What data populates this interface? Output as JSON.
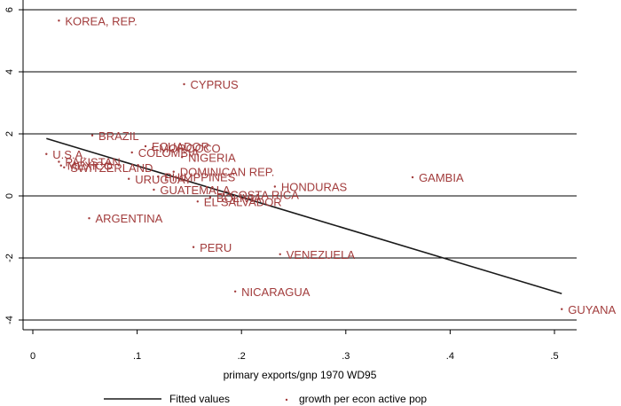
{
  "chart_data": {
    "type": "scatter",
    "xlabel": "primary exports/gnp 1970 WD95",
    "ylabel": "",
    "xlim": [
      0,
      0.52
    ],
    "ylim": [
      -4.2,
      6.2
    ],
    "x_ticks": [
      {
        "value": 0,
        "label": "0"
      },
      {
        "value": 0.1,
        "label": ".1"
      },
      {
        "value": 0.2,
        "label": ".2"
      },
      {
        "value": 0.3,
        "label": ".3"
      },
      {
        "value": 0.4,
        "label": ".4"
      },
      {
        "value": 0.5,
        "label": ".5"
      }
    ],
    "y_ticks": [
      {
        "value": -4,
        "label": "-4"
      },
      {
        "value": -2,
        "label": "-2"
      },
      {
        "value": 0,
        "label": "0"
      },
      {
        "value": 2,
        "label": "2"
      },
      {
        "value": 4,
        "label": "4"
      },
      {
        "value": 6,
        "label": "6"
      }
    ],
    "grid": "horizontal",
    "legend_placement": "bottom",
    "colors": {
      "points": "#a23c3c",
      "fit": "#1a1a1a"
    },
    "series": [
      {
        "name": "growth per econ active pop",
        "kind": "scatter",
        "points": [
          {
            "label": "KOREA, REP.",
            "x": 0.025,
            "y": 5.65
          },
          {
            "label": "CYPRUS",
            "x": 0.145,
            "y": 3.6
          },
          {
            "label": "BRAZIL",
            "x": 0.057,
            "y": 1.95
          },
          {
            "label": "ECUADOR",
            "x": 0.108,
            "y": 1.6
          },
          {
            "label": "MOROCCO",
            "x": 0.115,
            "y": 1.55
          },
          {
            "label": "COLOMBIA",
            "x": 0.095,
            "y": 1.4
          },
          {
            "label": "NIGERIA",
            "x": 0.143,
            "y": 1.25
          },
          {
            "label": "U.S.A.",
            "x": 0.013,
            "y": 1.35
          },
          {
            "label": "PAKISTAN",
            "x": 0.025,
            "y": 1.1
          },
          {
            "label": "MEXICO",
            "x": 0.027,
            "y": 0.98
          },
          {
            "label": "SWITZERLAND",
            "x": 0.03,
            "y": 0.92
          },
          {
            "label": "DOMINICAN REP.",
            "x": 0.135,
            "y": 0.78
          },
          {
            "label": "PHILIPPINES",
            "x": 0.12,
            "y": 0.62
          },
          {
            "label": "URUGUAY",
            "x": 0.092,
            "y": 0.55
          },
          {
            "label": "GAMBIA",
            "x": 0.364,
            "y": 0.6
          },
          {
            "label": "HONDURAS",
            "x": 0.232,
            "y": 0.3
          },
          {
            "label": "GUATEMALA",
            "x": 0.116,
            "y": 0.2
          },
          {
            "label": "COSTA RICA",
            "x": 0.183,
            "y": 0.05
          },
          {
            "label": "BOLIVIA",
            "x": 0.17,
            "y": -0.05
          },
          {
            "label": "EL SALVADOR",
            "x": 0.158,
            "y": -0.18
          },
          {
            "label": "ARGENTINA",
            "x": 0.054,
            "y": -0.72
          },
          {
            "label": "PERU",
            "x": 0.154,
            "y": -1.65
          },
          {
            "label": "VENEZUELA",
            "x": 0.237,
            "y": -1.88
          },
          {
            "label": "NICARAGUA",
            "x": 0.194,
            "y": -3.08
          },
          {
            "label": "GUYANA",
            "x": 0.507,
            "y": -3.65
          }
        ]
      },
      {
        "name": "Fitted values",
        "kind": "line",
        "points": [
          {
            "x": 0.013,
            "y": 1.85
          },
          {
            "x": 0.507,
            "y": -3.15
          }
        ]
      }
    ],
    "legend": [
      {
        "label": "Fitted values",
        "symbol": "line"
      },
      {
        "label": "growth per econ active pop",
        "symbol": "dot"
      }
    ]
  }
}
